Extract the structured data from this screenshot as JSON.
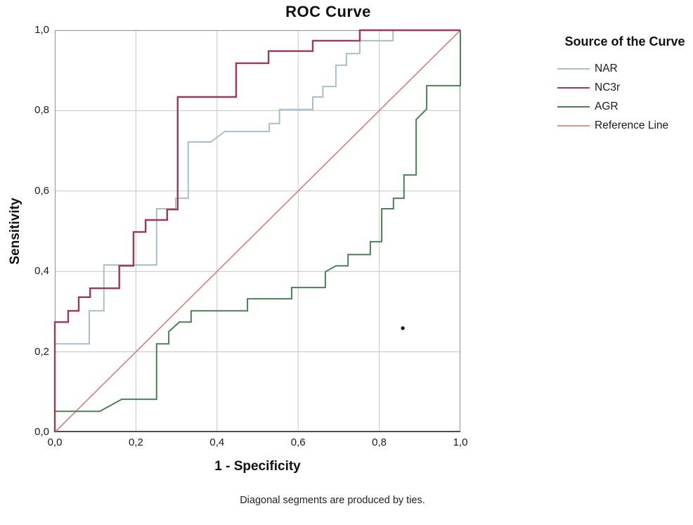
{
  "title": "ROC Curve",
  "footnote": "Diagonal segments are produced by ties.",
  "axes": {
    "x": {
      "label": "1 - Specificity",
      "ticks": [
        {
          "label": "0,0",
          "value": 0.0
        },
        {
          "label": "0,2",
          "value": 0.2
        },
        {
          "label": "0,4",
          "value": 0.4
        },
        {
          "label": "0,6",
          "value": 0.6
        },
        {
          "label": "0,8",
          "value": 0.8
        },
        {
          "label": "1,0",
          "value": 1.0
        }
      ]
    },
    "y": {
      "label": "Sensitivity",
      "ticks": [
        {
          "label": "0,0",
          "value": 0.0
        },
        {
          "label": "0,2",
          "value": 0.2
        },
        {
          "label": "0,4",
          "value": 0.4
        },
        {
          "label": "0,6",
          "value": 0.6
        },
        {
          "label": "0,8",
          "value": 0.8
        },
        {
          "label": "1,0",
          "value": 1.0
        }
      ]
    }
  },
  "legend": {
    "title": "Source of the Curve",
    "entries": [
      {
        "label": "NAR",
        "color": "#aabfca"
      },
      {
        "label": "NC3r",
        "color": "#9c3a55"
      },
      {
        "label": "AGR",
        "color": "#4f7f58"
      },
      {
        "label": "Reference Line",
        "color": "#d8988e"
      }
    ]
  },
  "colors": {
    "grid": "#c6c6c6",
    "frame": "#909090",
    "bottom_axis": "#4f4f4f",
    "text": "#1a1a1a",
    "outlier": "#000000"
  },
  "chart_data": {
    "type": "line",
    "subtype": "roc-step-curves",
    "title": "ROC Curve",
    "xlabel": "1 - Specificity",
    "ylabel": "Sensitivity",
    "xlim": [
      0,
      1
    ],
    "ylim": [
      0,
      1
    ],
    "grid": true,
    "grid_ticks": [
      0.2,
      0.4,
      0.6,
      0.8
    ],
    "legend_position": "right",
    "series": [
      {
        "name": "NAR",
        "color": "#aabfca",
        "width": 2,
        "points": [
          [
            0,
            0
          ],
          [
            0,
            0.22
          ],
          [
            0.085,
            0.22
          ],
          [
            0.085,
            0.302
          ],
          [
            0.121,
            0.302
          ],
          [
            0.121,
            0.416
          ],
          [
            0.251,
            0.416
          ],
          [
            0.251,
            0.556
          ],
          [
            0.298,
            0.556
          ],
          [
            0.298,
            0.582
          ],
          [
            0.329,
            0.582
          ],
          [
            0.329,
            0.722
          ],
          [
            0.385,
            0.722
          ],
          [
            0.419,
            0.748
          ],
          [
            0.529,
            0.748
          ],
          [
            0.529,
            0.768
          ],
          [
            0.554,
            0.768
          ],
          [
            0.554,
            0.803
          ],
          [
            0.636,
            0.803
          ],
          [
            0.636,
            0.834
          ],
          [
            0.661,
            0.834
          ],
          [
            0.661,
            0.86
          ],
          [
            0.693,
            0.86
          ],
          [
            0.693,
            0.913
          ],
          [
            0.719,
            0.913
          ],
          [
            0.719,
            0.942
          ],
          [
            0.752,
            0.942
          ],
          [
            0.752,
            0.974
          ],
          [
            0.834,
            0.974
          ],
          [
            0.834,
            1
          ],
          [
            1,
            1
          ]
        ]
      },
      {
        "name": "NC3r",
        "color": "#9c3a55",
        "width": 2.4,
        "points": [
          [
            0,
            0
          ],
          [
            0,
            0.274
          ],
          [
            0.033,
            0.274
          ],
          [
            0.033,
            0.302
          ],
          [
            0.059,
            0.302
          ],
          [
            0.059,
            0.336
          ],
          [
            0.087,
            0.336
          ],
          [
            0.087,
            0.358
          ],
          [
            0.159,
            0.358
          ],
          [
            0.159,
            0.414
          ],
          [
            0.194,
            0.414
          ],
          [
            0.194,
            0.498
          ],
          [
            0.224,
            0.498
          ],
          [
            0.224,
            0.528
          ],
          [
            0.277,
            0.528
          ],
          [
            0.277,
            0.554
          ],
          [
            0.303,
            0.554
          ],
          [
            0.303,
            0.834
          ],
          [
            0.447,
            0.834
          ],
          [
            0.447,
            0.918
          ],
          [
            0.527,
            0.918
          ],
          [
            0.527,
            0.948
          ],
          [
            0.636,
            0.948
          ],
          [
            0.636,
            0.974
          ],
          [
            0.752,
            0.974
          ],
          [
            0.752,
            1
          ],
          [
            1,
            1
          ]
        ]
      },
      {
        "name": "AGR",
        "color": "#4f7f58",
        "width": 2,
        "points": [
          [
            0,
            0
          ],
          [
            0,
            0.052
          ],
          [
            0.111,
            0.052
          ],
          [
            0.165,
            0.082
          ],
          [
            0.251,
            0.082
          ],
          [
            0.251,
            0.22
          ],
          [
            0.281,
            0.22
          ],
          [
            0.281,
            0.25
          ],
          [
            0.307,
            0.274
          ],
          [
            0.336,
            0.274
          ],
          [
            0.336,
            0.302
          ],
          [
            0.475,
            0.302
          ],
          [
            0.475,
            0.332
          ],
          [
            0.584,
            0.332
          ],
          [
            0.584,
            0.36
          ],
          [
            0.667,
            0.36
          ],
          [
            0.667,
            0.399
          ],
          [
            0.693,
            0.414
          ],
          [
            0.723,
            0.414
          ],
          [
            0.723,
            0.442
          ],
          [
            0.778,
            0.442
          ],
          [
            0.778,
            0.474
          ],
          [
            0.806,
            0.474
          ],
          [
            0.806,
            0.556
          ],
          [
            0.835,
            0.556
          ],
          [
            0.835,
            0.582
          ],
          [
            0.861,
            0.582
          ],
          [
            0.861,
            0.64
          ],
          [
            0.891,
            0.64
          ],
          [
            0.891,
            0.778
          ],
          [
            0.917,
            0.804
          ],
          [
            0.917,
            0.862
          ],
          [
            1,
            0.862
          ],
          [
            1,
            1
          ]
        ]
      },
      {
        "name": "Reference Line",
        "color": "#cc8379",
        "width": 1.6,
        "points": [
          [
            0,
            0
          ],
          [
            1,
            1
          ]
        ]
      }
    ],
    "outlier_point": {
      "x": 0.858,
      "y": 0.259
    }
  }
}
